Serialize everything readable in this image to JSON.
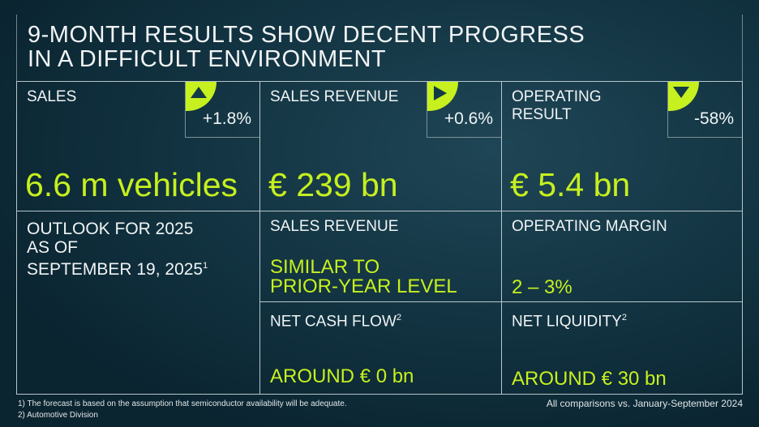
{
  "title": [
    "9-MONTH RESULTS SHOW DECENT PROGRESS",
    "IN A DIFFICULT ENVIRONMENT"
  ],
  "accent_color": "#c6f01e",
  "kpis": [
    {
      "label": "SALES",
      "value": "6.6 m vehicles",
      "change": "+1.8%",
      "trend_icon": "triangle-up-icon"
    },
    {
      "label": "SALES REVENUE",
      "value": "€ 239 bn",
      "change": "+0.6%",
      "trend_icon": "triangle-right-icon"
    },
    {
      "label_lines": [
        "OPERATING",
        "RESULT"
      ],
      "value": "€ 5.4 bn",
      "change": "-58%",
      "trend_icon": "triangle-down-icon"
    }
  ],
  "outlook": {
    "heading": [
      "OUTLOOK FOR 2025",
      "AS OF",
      "SEPTEMBER 19, 2025"
    ],
    "heading_sup": "1",
    "sales_revenue": {
      "label": "SALES REVENUE",
      "value": [
        "SIMILAR TO",
        "PRIOR-YEAR LEVEL"
      ]
    },
    "operating_margin": {
      "label": "OPERATING MARGIN",
      "value": "2 – 3%"
    },
    "net_cash_flow": {
      "label": "NET CASH FLOW",
      "sup": "2",
      "value": "AROUND € 0 bn"
    },
    "net_liquidity": {
      "label": "NET LIQUIDITY",
      "sup": "2",
      "value": "AROUND € 30 bn"
    }
  },
  "footnotes": [
    "1) The forecast is based on the assumption that semiconductor availability will be adequate.",
    "2) Automotive Division"
  ],
  "comparison_note": "All comparisons vs. January-September 2024"
}
